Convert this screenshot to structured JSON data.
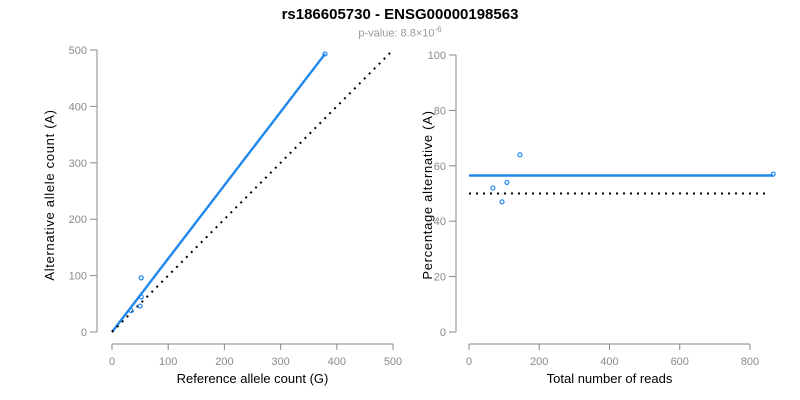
{
  "header": {
    "title": "rs186605730 - ENSG00000198563",
    "subtitle_main": "p-value: 8.8×10",
    "subtitle_exp": "-6"
  },
  "colors": {
    "accent": "#1f87ee",
    "axis": "#888888",
    "tick_label": "#8a8a8a",
    "dotted": "#000000",
    "title": "#000000",
    "subtitle": "#999999"
  },
  "chart_data": [
    {
      "type": "scatter",
      "panel": "allele-counts",
      "title": "",
      "xlabel": "Reference allele count (G)",
      "ylabel": "Alternative allele count (A)",
      "xlim": [
        0,
        500
      ],
      "ylim": [
        0,
        500
      ],
      "xticks": [
        0,
        100,
        200,
        300,
        400,
        500
      ],
      "yticks": [
        0,
        100,
        200,
        300,
        400,
        500
      ],
      "grid": false,
      "legend": null,
      "points": [
        [
          34,
          38
        ],
        [
          50,
          46
        ],
        [
          52,
          62
        ],
        [
          52,
          96
        ],
        [
          379,
          493
        ]
      ],
      "lines": [
        {
          "name": "fit-line",
          "style": "solid",
          "color": "#1f87ee",
          "from": [
            0,
            0
          ],
          "to": [
            379,
            493
          ]
        },
        {
          "name": "identity-line",
          "style": "dotted",
          "color": "#000000",
          "from": [
            0,
            0
          ],
          "to": [
            500,
            500
          ]
        }
      ]
    },
    {
      "type": "scatter",
      "panel": "percentage-vs-reads",
      "title": "",
      "xlabel": "Total number of reads",
      "ylabel": "Percentage alternative (A)",
      "xlim": [
        0,
        870
      ],
      "ylim": [
        0,
        100
      ],
      "xticks": [
        0,
        200,
        400,
        600,
        800
      ],
      "yticks": [
        0,
        20,
        40,
        60,
        80,
        100
      ],
      "grid": false,
      "legend": null,
      "points": [
        [
          68,
          52
        ],
        [
          94,
          47
        ],
        [
          108,
          54
        ],
        [
          145,
          64
        ],
        [
          866,
          57
        ]
      ],
      "lines": [
        {
          "name": "fit-line",
          "style": "solid",
          "color": "#1f87ee",
          "from": [
            0,
            56.5
          ],
          "to": [
            866,
            56.5
          ]
        },
        {
          "name": "reference-line",
          "style": "dotted",
          "color": "#000000",
          "from": [
            0,
            50
          ],
          "to": [
            855,
            50
          ]
        }
      ]
    }
  ]
}
